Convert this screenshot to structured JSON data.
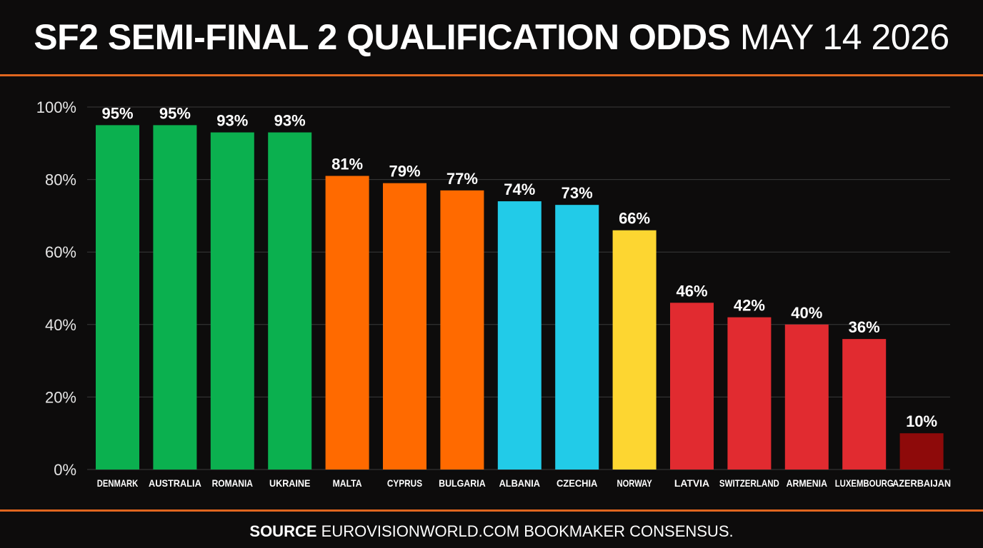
{
  "header": {
    "title_bold": "SF2 SEMI-FINAL 2 QUALIFICATION ODDS",
    "title_light": "MAY 14 2026"
  },
  "footer": {
    "source_label": "SOURCE",
    "source_text": "EUROVISIONWORLD.COM BOOKMAKER CONSENSUS."
  },
  "colors": {
    "background": "#0d0c0c",
    "accent_rule": "#e0661f",
    "gridline": "#3a3a3a",
    "green": "#0bb04f",
    "orange": "#ff6a00",
    "cyan": "#22cbe8",
    "yellow": "#fdd631",
    "red": "#e12b30",
    "dark_red": "#8e0a0a"
  },
  "chart_data": {
    "type": "bar",
    "categories": [
      "DENMARK",
      "AUSTRALIA",
      "ROMANIA",
      "UKRAINE",
      "MALTA",
      "CYPRUS",
      "BULGARIA",
      "ALBANIA",
      "CZECHIA",
      "NORWAY",
      "LATVIA",
      "SWITZERLAND",
      "ARMENIA",
      "LUXEMBOURG",
      "AZERBAIJAN"
    ],
    "values": [
      95,
      95,
      93,
      93,
      81,
      79,
      77,
      74,
      73,
      66,
      46,
      42,
      40,
      36,
      10
    ],
    "value_labels": [
      "95%",
      "95%",
      "93%",
      "93%",
      "81%",
      "79%",
      "77%",
      "74%",
      "73%",
      "66%",
      "46%",
      "42%",
      "40%",
      "36%",
      "10%"
    ],
    "bar_colors": [
      "#0bb04f",
      "#0bb04f",
      "#0bb04f",
      "#0bb04f",
      "#ff6a00",
      "#ff6a00",
      "#ff6a00",
      "#22cbe8",
      "#22cbe8",
      "#fdd631",
      "#e12b30",
      "#e12b30",
      "#e12b30",
      "#e12b30",
      "#8e0a0a"
    ],
    "yticks": [
      "0%",
      "20%",
      "40%",
      "60%",
      "80%",
      "100%"
    ],
    "ytick_values": [
      0,
      20,
      40,
      60,
      80,
      100
    ],
    "ylim": [
      0,
      100
    ],
    "grid": true,
    "legend": "none"
  }
}
